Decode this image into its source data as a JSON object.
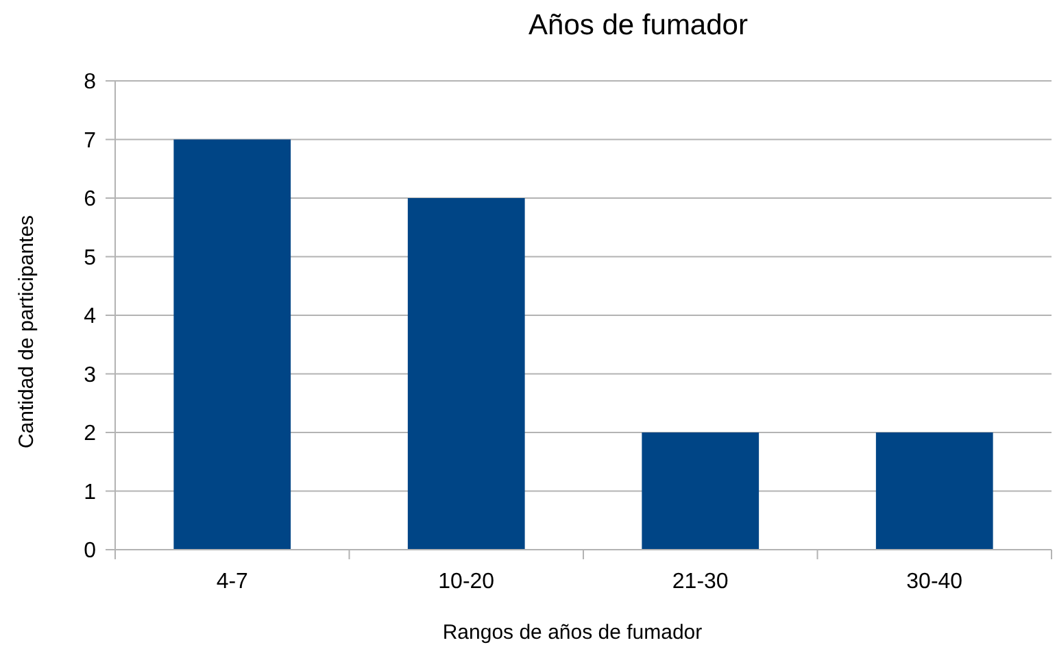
{
  "chart_data": {
    "type": "bar",
    "title": "Años de fumador",
    "xlabel": "Rangos de años de fumador",
    "ylabel": "Cantidad de participantes",
    "categories": [
      "4-7",
      "10-20",
      "21-30",
      "30-40"
    ],
    "values": [
      7,
      6,
      2,
      2
    ],
    "color": "#004586",
    "ylim": [
      0,
      8
    ],
    "yticks": [
      0,
      1,
      2,
      3,
      4,
      5,
      6,
      7,
      8
    ],
    "grid": "y"
  }
}
